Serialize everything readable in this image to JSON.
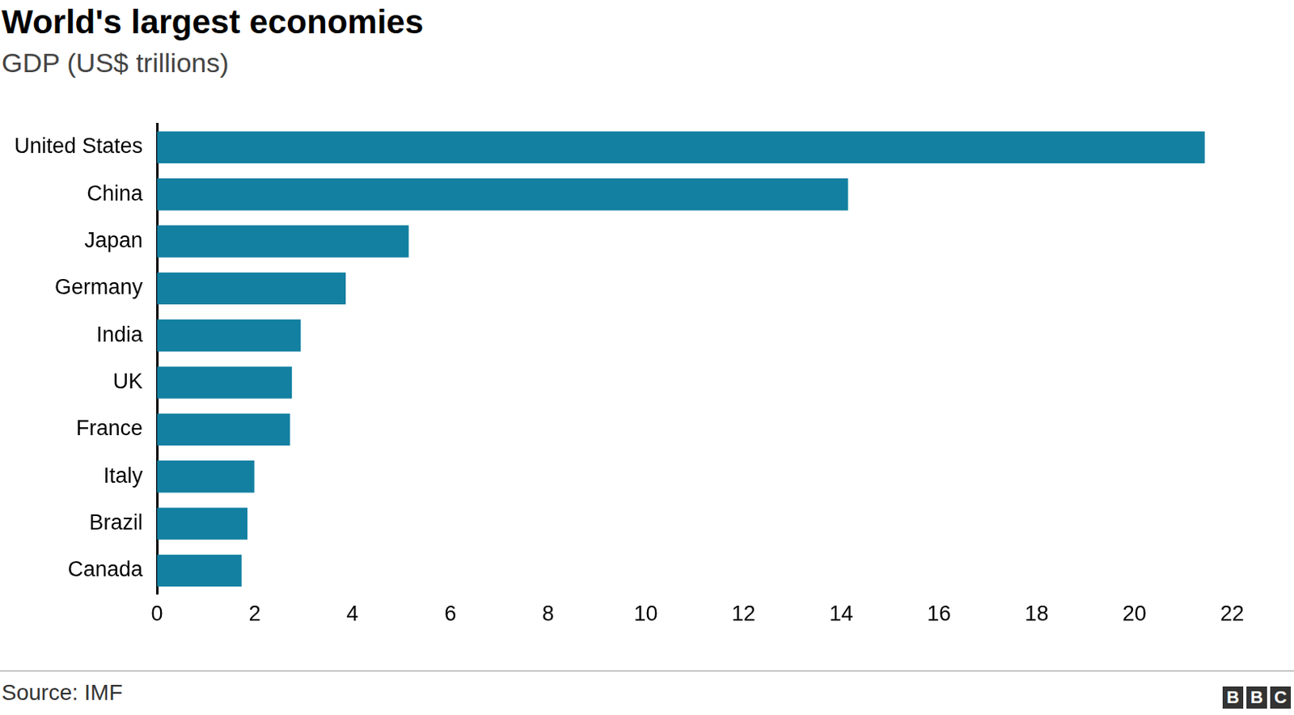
{
  "chart_data": {
    "type": "bar",
    "title": "World's largest economies",
    "subtitle": "GDP (US$ trillions)",
    "categories": [
      "United States",
      "China",
      "Japan",
      "Germany",
      "India",
      "UK",
      "France",
      "Italy",
      "Brazil",
      "Canada"
    ],
    "values": [
      21.44,
      14.14,
      5.15,
      3.86,
      2.94,
      2.76,
      2.72,
      1.99,
      1.85,
      1.73
    ],
    "color": "#1380a1",
    "orientation": "horizontal",
    "xlim": [
      0,
      22
    ],
    "xticks": [
      0,
      2,
      4,
      6,
      8,
      10,
      12,
      14,
      16,
      18,
      20,
      22
    ],
    "grid": false,
    "source": "Source: IMF",
    "logo": "BBC"
  }
}
